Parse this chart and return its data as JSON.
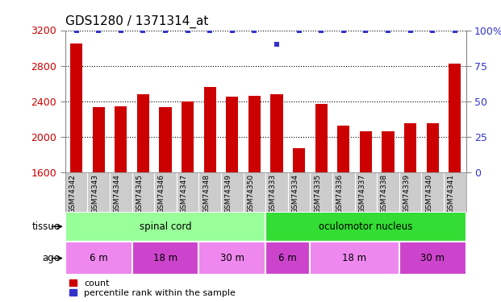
{
  "title": "GDS1280 / 1371314_at",
  "samples": [
    "GSM74342",
    "GSM74343",
    "GSM74344",
    "GSM74345",
    "GSM74346",
    "GSM74347",
    "GSM74348",
    "GSM74349",
    "GSM74350",
    "GSM74333",
    "GSM74334",
    "GSM74335",
    "GSM74336",
    "GSM74337",
    "GSM74338",
    "GSM74339",
    "GSM74340",
    "GSM74341"
  ],
  "counts": [
    3050,
    2330,
    2340,
    2480,
    2330,
    2400,
    2560,
    2450,
    2460,
    2480,
    1870,
    2370,
    2120,
    2060,
    2060,
    2150,
    2150,
    2820
  ],
  "percentiles": [
    100,
    100,
    100,
    100,
    100,
    100,
    100,
    100,
    100,
    90,
    100,
    100,
    100,
    100,
    100,
    100,
    100,
    100
  ],
  "ylim_left": [
    1600,
    3200
  ],
  "ylim_right": [
    0,
    100
  ],
  "yticks_left": [
    1600,
    2000,
    2400,
    2800,
    3200
  ],
  "yticks_right": [
    0,
    25,
    50,
    75,
    100
  ],
  "bar_color": "#cc0000",
  "dot_color": "#3333cc",
  "tissue_groups": [
    {
      "label": "spinal cord",
      "start": 0,
      "end": 9,
      "color": "#99ff99"
    },
    {
      "label": "oculomotor nucleus",
      "start": 9,
      "end": 18,
      "color": "#33dd33"
    }
  ],
  "age_groups": [
    {
      "label": "6 m",
      "start": 0,
      "end": 3,
      "color": "#ee88ee"
    },
    {
      "label": "18 m",
      "start": 3,
      "end": 6,
      "color": "#cc44cc"
    },
    {
      "label": "30 m",
      "start": 6,
      "end": 9,
      "color": "#ee88ee"
    },
    {
      "label": "6 m",
      "start": 9,
      "end": 11,
      "color": "#cc44cc"
    },
    {
      "label": "18 m",
      "start": 11,
      "end": 15,
      "color": "#ee88ee"
    },
    {
      "label": "30 m",
      "start": 15,
      "end": 18,
      "color": "#cc44cc"
    }
  ],
  "tissue_label": "tissue",
  "age_label": "age",
  "legend_count_label": "count",
  "legend_pct_label": "percentile rank within the sample",
  "background_color": "#ffffff",
  "tick_label_color_left": "#cc0000",
  "tick_label_color_right": "#3333cc",
  "title_fontsize": 11,
  "axis_fontsize": 9,
  "bar_width": 0.55,
  "xlabels_bg": "#cccccc",
  "sample_fontsize": 6.5
}
